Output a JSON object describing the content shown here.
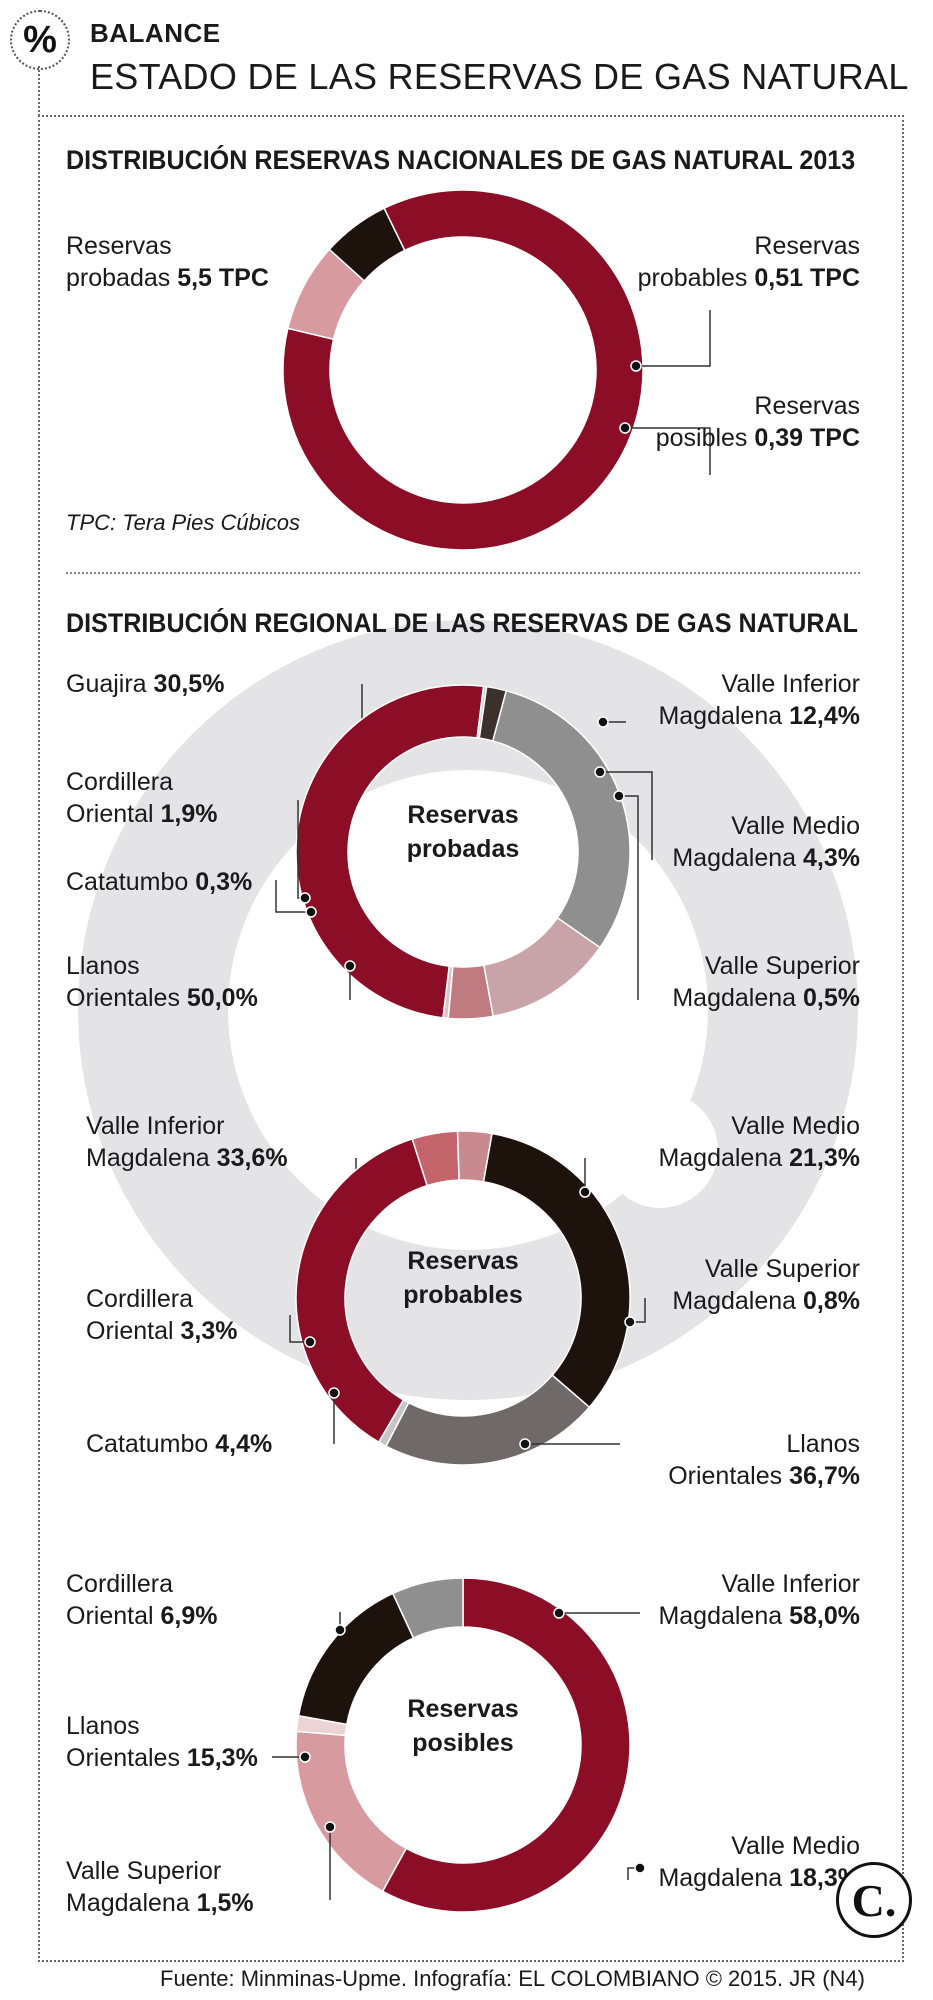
{
  "header": {
    "badge": "%",
    "kicker": "BALANCE",
    "title": "ESTADO DE LAS RESERVAS DE GAS NATURAL"
  },
  "national": {
    "title": "DISTRIBUCIÓN RESERVAS NACIONALES DE GAS NATURAL 2013",
    "note": "TPC: Tera Pies Cúbicos"
  },
  "regional": {
    "title": "DISTRIBUCIÓN REGIONAL DE LAS RESERVAS DE GAS NATURAL"
  },
  "footer": {
    "source": "Fuente: Minminas-Upme. Infografía: EL COLOMBIANO © 2015. JR (N4)",
    "logo": "C."
  },
  "colors": {
    "dark_red": "#8b0d26",
    "pink": "#d79a9e",
    "black": "#1e120d",
    "gray": "#8f8f8f",
    "light_pink": "#c8a4a8",
    "dusty_rose": "#c07b80",
    "light_gray": "#c5c5c5"
  },
  "chart_data": [
    {
      "type": "pie",
      "variant": "donut",
      "unit": "TPC",
      "slices": [
        {
          "label1": "Reservas",
          "label2": "probadas",
          "value_text": "5,5 TPC",
          "value": 5.5,
          "color": "#8b0d26"
        },
        {
          "label1": "Reservas",
          "label2": "probables",
          "value_text": "0,51 TPC",
          "value": 0.51,
          "color": "#d79a9e"
        },
        {
          "label1": "Reservas",
          "label2": "posibles",
          "value_text": "0,39 TPC",
          "value": 0.39,
          "color": "#1e120d"
        }
      ]
    },
    {
      "type": "pie",
      "variant": "donut",
      "center": [
        "Reservas",
        "probadas"
      ],
      "slices": [
        {
          "label1": "",
          "label2": "Guajira",
          "value_text": "30,5%",
          "value": 30.5,
          "color": "#8f8f8f"
        },
        {
          "label1": "Valle Inferior",
          "label2": "Magdalena",
          "value_text": "12,4%",
          "value": 12.4,
          "color": "#c8a4a8"
        },
        {
          "label1": "Valle Medio",
          "label2": "Magdalena",
          "value_text": "4,3%",
          "value": 4.3,
          "color": "#c07b80"
        },
        {
          "label1": "Valle Superior",
          "label2": "Magdalena",
          "value_text": "0,5%",
          "value": 0.5,
          "color": "#dcc4c6"
        },
        {
          "label1": "Llanos",
          "label2": "Orientales",
          "value_text": "50,0%",
          "value": 50.0,
          "color": "#8b0d26"
        },
        {
          "label1": "",
          "label2": "Catatumbo",
          "value_text": "0,3%",
          "value": 0.3,
          "color": "#d0d0d0"
        },
        {
          "label1": "Cordillera",
          "label2": "Oriental",
          "value_text": "1,9%",
          "value": 1.9,
          "color": "#3b302c"
        }
      ]
    },
    {
      "type": "pie",
      "variant": "donut",
      "center": [
        "Reservas",
        "probables"
      ],
      "slices": [
        {
          "label1": "Valle Inferior",
          "label2": "Magdalena",
          "value_text": "33,6%",
          "value": 33.6,
          "color": "#1e120d"
        },
        {
          "label1": "Valle Medio",
          "label2": "Magdalena",
          "value_text": "21,3%",
          "value": 21.3,
          "color": "#6f6a69"
        },
        {
          "label1": "Valle Superior",
          "label2": "Magdalena",
          "value_text": "0,8%",
          "value": 0.8,
          "color": "#c5c5c5"
        },
        {
          "label1": "Llanos",
          "label2": "Orientales",
          "value_text": "36,7%",
          "value": 36.7,
          "color": "#8b0d26"
        },
        {
          "label1": "",
          "label2": "Catatumbo",
          "value_text": "4,4%",
          "value": 4.4,
          "color": "#c4646b"
        },
        {
          "label1": "Cordillera",
          "label2": "Oriental",
          "value_text": "3,3%",
          "value": 3.3,
          "color": "#c88a8e"
        }
      ]
    },
    {
      "type": "pie",
      "variant": "donut",
      "center": [
        "Reservas",
        "posibles"
      ],
      "slices": [
        {
          "label1": "Valle Inferior",
          "label2": "Magdalena",
          "value_text": "58,0%",
          "value": 58.0,
          "color": "#8b0d26"
        },
        {
          "label1": "Valle Medio",
          "label2": "Magdalena",
          "value_text": "18,3%",
          "value": 18.3,
          "color": "#d79a9e"
        },
        {
          "label1": "Valle Superior",
          "label2": "Magdalena",
          "value_text": "1,5%",
          "value": 1.5,
          "color": "#ecd3d5"
        },
        {
          "label1": "Llanos",
          "label2": "Orientales",
          "value_text": "15,3%",
          "value": 15.3,
          "color": "#1e120d"
        },
        {
          "label1": "Cordillera",
          "label2": "Oriental",
          "value_text": "6,9%",
          "value": 6.9,
          "color": "#8f8f8f"
        }
      ]
    }
  ]
}
